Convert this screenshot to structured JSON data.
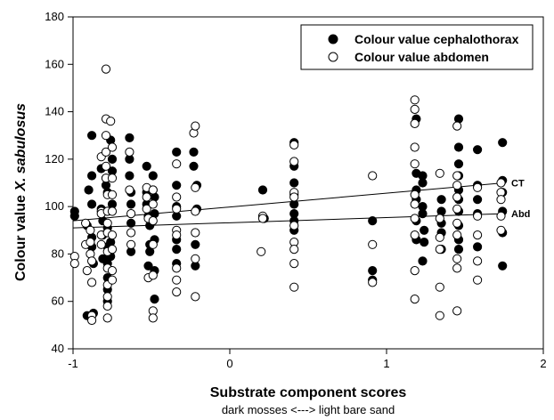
{
  "chart_data": {
    "type": "scatter",
    "xlabel": "Substrate component scores",
    "xlabel_sub": "dark mosses <---> light bare sand",
    "ylabel_prefix": "Colour value ",
    "ylabel_species": "X. sabulosus",
    "xlim": [
      -1,
      2
    ],
    "ylim": [
      40,
      180
    ],
    "x_ticks": [
      "-1",
      "0",
      "1",
      "2"
    ],
    "y_ticks": [
      "40",
      "60",
      "80",
      "100",
      "120",
      "140",
      "160",
      "180"
    ],
    "legend_position": "top-right",
    "series": [
      {
        "name": "Colour value cephalothorax",
        "marker": "filled-circle",
        "color": "#000000",
        "points": [
          [
            -0.99,
            96
          ],
          [
            -0.99,
            98
          ],
          [
            -0.91,
            54
          ],
          [
            -0.91,
            92
          ],
          [
            -0.9,
            107
          ],
          [
            -0.88,
            130
          ],
          [
            -0.88,
            113
          ],
          [
            -0.88,
            101
          ],
          [
            -0.88,
            87
          ],
          [
            -0.88,
            83
          ],
          [
            -0.87,
            76
          ],
          [
            -0.87,
            55
          ],
          [
            -0.82,
            116
          ],
          [
            -0.82,
            99
          ],
          [
            -0.81,
            94
          ],
          [
            -0.81,
            88
          ],
          [
            -0.81,
            78
          ],
          [
            -0.79,
            112
          ],
          [
            -0.79,
            109
          ],
          [
            -0.78,
            106
          ],
          [
            -0.78,
            98
          ],
          [
            -0.78,
            91
          ],
          [
            -0.78,
            83
          ],
          [
            -0.78,
            76
          ],
          [
            -0.78,
            70
          ],
          [
            -0.78,
            65
          ],
          [
            -0.78,
            60
          ],
          [
            -0.76,
            128
          ],
          [
            -0.75,
            120
          ],
          [
            -0.75,
            115
          ],
          [
            -0.75,
            101
          ],
          [
            -0.76,
            85
          ],
          [
            -0.76,
            79
          ],
          [
            -0.64,
            129
          ],
          [
            -0.64,
            120
          ],
          [
            -0.64,
            113
          ],
          [
            -0.63,
            106
          ],
          [
            -0.63,
            101
          ],
          [
            -0.63,
            93
          ],
          [
            -0.63,
            81
          ],
          [
            -0.53,
            117
          ],
          [
            -0.53,
            106
          ],
          [
            -0.53,
            101
          ],
          [
            -0.52,
            96
          ],
          [
            -0.51,
            92
          ],
          [
            -0.51,
            84
          ],
          [
            -0.51,
            81
          ],
          [
            -0.52,
            75
          ],
          [
            -0.49,
            113
          ],
          [
            -0.49,
            107
          ],
          [
            -0.48,
            104
          ],
          [
            -0.48,
            97
          ],
          [
            -0.48,
            86
          ],
          [
            -0.48,
            73
          ],
          [
            -0.48,
            61
          ],
          [
            -0.34,
            123
          ],
          [
            -0.34,
            109
          ],
          [
            -0.34,
            100
          ],
          [
            -0.34,
            96
          ],
          [
            -0.34,
            86
          ],
          [
            -0.34,
            82
          ],
          [
            -0.34,
            76
          ],
          [
            -0.23,
            123
          ],
          [
            -0.23,
            117
          ],
          [
            -0.21,
            109
          ],
          [
            -0.21,
            99
          ],
          [
            -0.22,
            84
          ],
          [
            -0.22,
            75
          ],
          [
            0.21,
            107
          ],
          [
            0.22,
            95
          ],
          [
            0.41,
            127
          ],
          [
            0.41,
            117
          ],
          [
            0.41,
            110
          ],
          [
            0.41,
            105
          ],
          [
            0.41,
            101
          ],
          [
            0.41,
            97
          ],
          [
            0.41,
            94
          ],
          [
            0.41,
            90
          ],
          [
            0.91,
            94
          ],
          [
            0.91,
            73
          ],
          [
            0.91,
            69
          ],
          [
            1.19,
            137
          ],
          [
            1.19,
            114
          ],
          [
            1.19,
            107
          ],
          [
            1.19,
            103
          ],
          [
            1.19,
            94
          ],
          [
            1.19,
            86
          ],
          [
            1.23,
            113
          ],
          [
            1.23,
            110
          ],
          [
            1.23,
            100
          ],
          [
            1.23,
            97
          ],
          [
            1.24,
            90
          ],
          [
            1.24,
            85
          ],
          [
            1.23,
            77
          ],
          [
            1.35,
            103
          ],
          [
            1.35,
            98
          ],
          [
            1.35,
            93
          ],
          [
            1.35,
            89
          ],
          [
            1.35,
            82
          ],
          [
            1.46,
            137
          ],
          [
            1.46,
            125
          ],
          [
            1.46,
            118
          ],
          [
            1.46,
            113
          ],
          [
            1.46,
            107
          ],
          [
            1.46,
            103
          ],
          [
            1.46,
            98
          ],
          [
            1.46,
            92
          ],
          [
            1.46,
            86
          ],
          [
            1.46,
            82
          ],
          [
            1.58,
            124
          ],
          [
            1.58,
            109
          ],
          [
            1.58,
            103
          ],
          [
            1.58,
            97
          ],
          [
            1.58,
            83
          ],
          [
            1.74,
            127
          ],
          [
            1.74,
            111
          ],
          [
            1.74,
            106
          ],
          [
            1.74,
            98
          ],
          [
            1.74,
            89
          ],
          [
            1.74,
            75
          ]
        ]
      },
      {
        "name": "Colour value abdomen",
        "marker": "open-circle",
        "color": "#000000",
        "points": [
          [
            -0.99,
            79
          ],
          [
            -0.99,
            76
          ],
          [
            -0.92,
            84
          ],
          [
            -0.92,
            93
          ],
          [
            -0.91,
            73
          ],
          [
            -0.89,
            90
          ],
          [
            -0.89,
            85
          ],
          [
            -0.89,
            80
          ],
          [
            -0.88,
            77
          ],
          [
            -0.88,
            68
          ],
          [
            -0.88,
            54
          ],
          [
            -0.88,
            52
          ],
          [
            -0.82,
            121
          ],
          [
            -0.82,
            98
          ],
          [
            -0.82,
            97
          ],
          [
            -0.82,
            88
          ],
          [
            -0.82,
            84
          ],
          [
            -0.79,
            158
          ],
          [
            -0.79,
            137
          ],
          [
            -0.79,
            130
          ],
          [
            -0.79,
            123
          ],
          [
            -0.79,
            117
          ],
          [
            -0.79,
            112
          ],
          [
            -0.78,
            105
          ],
          [
            -0.78,
            98
          ],
          [
            -0.78,
            93
          ],
          [
            -0.78,
            89
          ],
          [
            -0.78,
            81
          ],
          [
            -0.78,
            74
          ],
          [
            -0.78,
            67
          ],
          [
            -0.78,
            62
          ],
          [
            -0.78,
            58
          ],
          [
            -0.78,
            53
          ],
          [
            -0.76,
            136
          ],
          [
            -0.75,
            125
          ],
          [
            -0.75,
            112
          ],
          [
            -0.75,
            105
          ],
          [
            -0.75,
            98
          ],
          [
            -0.75,
            88
          ],
          [
            -0.75,
            82
          ],
          [
            -0.75,
            73
          ],
          [
            -0.75,
            69
          ],
          [
            -0.64,
            123
          ],
          [
            -0.64,
            107
          ],
          [
            -0.63,
            97
          ],
          [
            -0.63,
            89
          ],
          [
            -0.63,
            84
          ],
          [
            -0.53,
            108
          ],
          [
            -0.53,
            104
          ],
          [
            -0.53,
            99
          ],
          [
            -0.52,
            95
          ],
          [
            -0.52,
            70
          ],
          [
            -0.49,
            107
          ],
          [
            -0.49,
            101
          ],
          [
            -0.49,
            94
          ],
          [
            -0.49,
            84
          ],
          [
            -0.49,
            71
          ],
          [
            -0.49,
            56
          ],
          [
            -0.49,
            53
          ],
          [
            -0.34,
            118
          ],
          [
            -0.34,
            104
          ],
          [
            -0.34,
            99
          ],
          [
            -0.34,
            90
          ],
          [
            -0.34,
            88
          ],
          [
            -0.34,
            74
          ],
          [
            -0.34,
            69
          ],
          [
            -0.34,
            64
          ],
          [
            -0.23,
            131
          ],
          [
            -0.22,
            134
          ],
          [
            -0.22,
            108
          ],
          [
            -0.22,
            98
          ],
          [
            -0.22,
            89
          ],
          [
            -0.22,
            78
          ],
          [
            -0.22,
            62
          ],
          [
            0.2,
            81
          ],
          [
            0.21,
            96
          ],
          [
            0.21,
            95
          ],
          [
            0.41,
            126
          ],
          [
            0.41,
            119
          ],
          [
            0.41,
            106
          ],
          [
            0.41,
            104
          ],
          [
            0.41,
            92
          ],
          [
            0.41,
            85
          ],
          [
            0.41,
            82
          ],
          [
            0.41,
            76
          ],
          [
            0.41,
            66
          ],
          [
            0.91,
            113
          ],
          [
            0.91,
            84
          ],
          [
            0.91,
            68
          ],
          [
            1.18,
            145
          ],
          [
            1.18,
            141
          ],
          [
            1.18,
            135
          ],
          [
            1.18,
            125
          ],
          [
            1.18,
            118
          ],
          [
            1.18,
            105
          ],
          [
            1.18,
            101
          ],
          [
            1.18,
            95
          ],
          [
            1.18,
            88
          ],
          [
            1.18,
            73
          ],
          [
            1.18,
            61
          ],
          [
            1.34,
            114
          ],
          [
            1.34,
            95
          ],
          [
            1.34,
            87
          ],
          [
            1.34,
            82
          ],
          [
            1.34,
            66
          ],
          [
            1.34,
            54
          ],
          [
            1.45,
            134
          ],
          [
            1.45,
            113
          ],
          [
            1.45,
            109
          ],
          [
            1.45,
            104
          ],
          [
            1.45,
            99
          ],
          [
            1.45,
            93
          ],
          [
            1.45,
            88
          ],
          [
            1.45,
            78
          ],
          [
            1.45,
            74
          ],
          [
            1.45,
            56
          ],
          [
            1.58,
            108
          ],
          [
            1.58,
            96
          ],
          [
            1.58,
            88
          ],
          [
            1.58,
            77
          ],
          [
            1.58,
            69
          ],
          [
            1.73,
            110
          ],
          [
            1.73,
            106
          ],
          [
            1.73,
            103
          ],
          [
            1.73,
            96
          ],
          [
            1.73,
            90
          ]
        ]
      }
    ],
    "trend_lines": [
      {
        "label": "CT",
        "x": [
          -1,
          1.75
        ],
        "y": [
          94,
          110
        ]
      },
      {
        "label": "Abd",
        "x": [
          -1,
          1.75
        ],
        "y": [
          91,
          97
        ]
      }
    ]
  }
}
